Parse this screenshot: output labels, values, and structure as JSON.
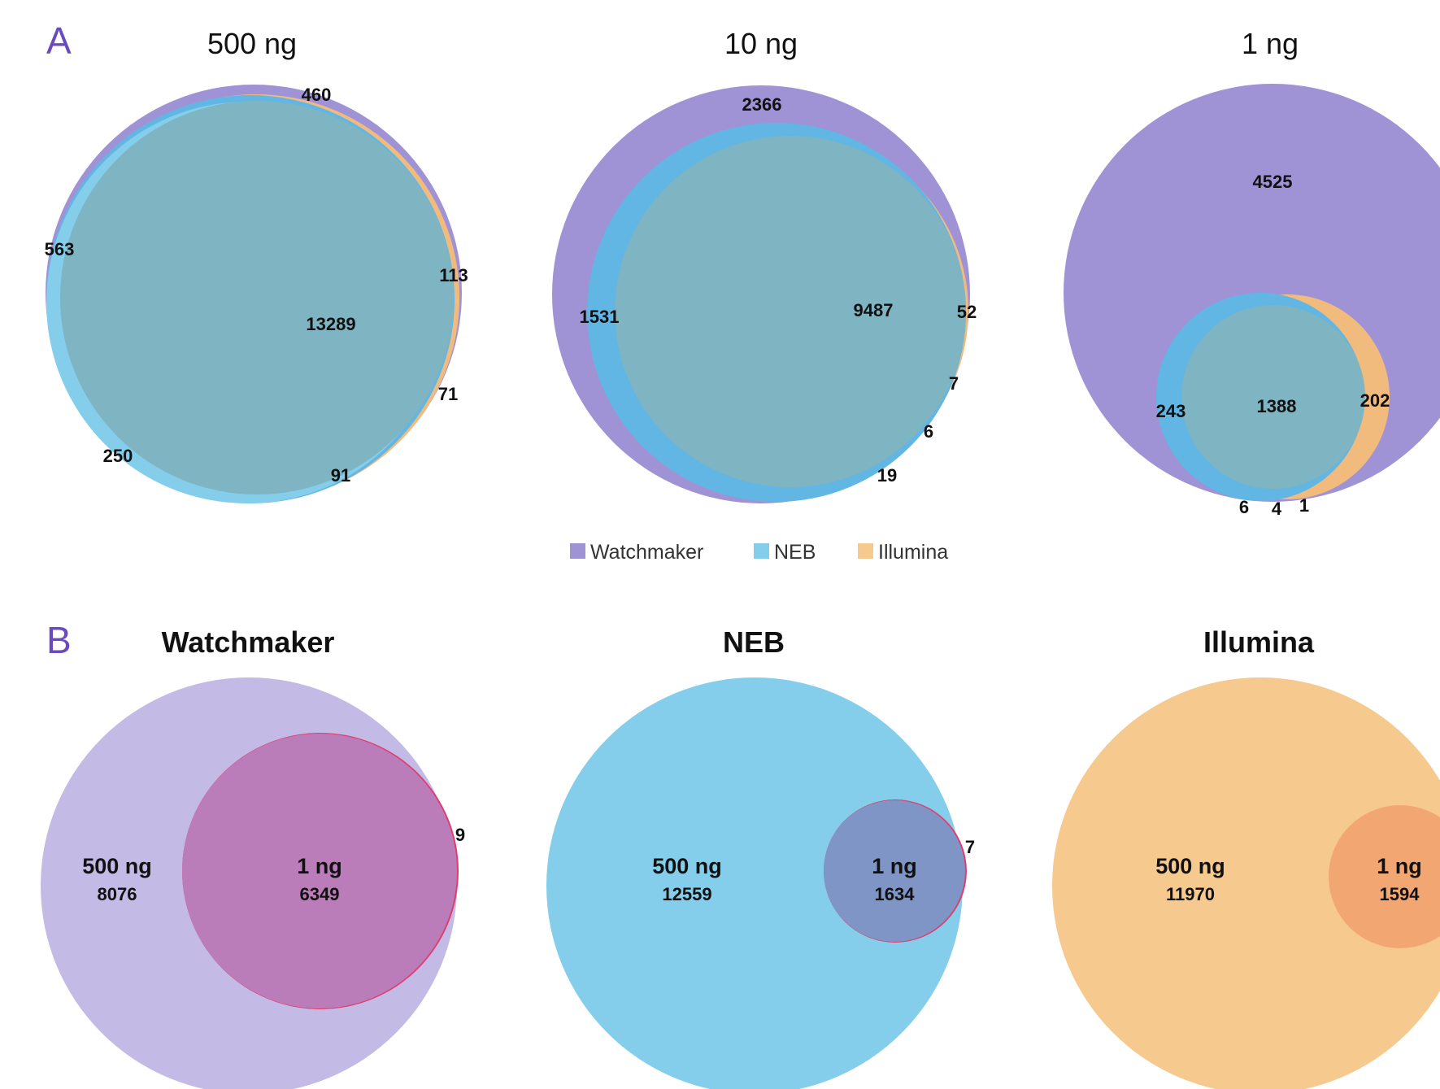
{
  "colors": {
    "watchmaker": "#9f93d6",
    "neb": "#62b6e3",
    "illumina": "#f1bb7e",
    "overlap": "#7fb4c2",
    "panel_letter": "#6a4bbd",
    "watchmaker_light": "#c3bae5",
    "watchmaker_1ng": "#bb7db9",
    "neb_light": "#84ceec",
    "neb_1ng": "#7f95c5",
    "illumina_light": "#f6c98f",
    "illumina_1ng": "#f2a773",
    "edge_sliver": "#e03c6e"
  },
  "panel_a": {
    "letter": "A",
    "legend": [
      "Watchmaker",
      "NEB",
      "Illumina"
    ]
  },
  "panel_b": {
    "letter": "B"
  },
  "chart_data": [
    {
      "type": "venn",
      "title": "500 ng",
      "sets": [
        "Watchmaker",
        "NEB",
        "Illumina"
      ],
      "regions": [
        {
          "sets": [
            "Watchmaker"
          ],
          "value": 460
        },
        {
          "sets": [
            "Watchmaker",
            "NEB"
          ],
          "value": 563
        },
        {
          "sets": [
            "Watchmaker",
            "Illumina"
          ],
          "value": 113
        },
        {
          "sets": [
            "Watchmaker",
            "NEB",
            "Illumina"
          ],
          "value": 13289
        },
        {
          "sets": [
            "Illumina"
          ],
          "value": 71
        },
        {
          "sets": [
            "NEB"
          ],
          "value": 250
        },
        {
          "sets": [
            "NEB",
            "Illumina"
          ],
          "value": 91
        }
      ]
    },
    {
      "type": "venn",
      "title": "10 ng",
      "sets": [
        "Watchmaker",
        "NEB",
        "Illumina"
      ],
      "regions": [
        {
          "sets": [
            "Watchmaker"
          ],
          "value": 2366
        },
        {
          "sets": [
            "Watchmaker",
            "NEB"
          ],
          "value": 1531
        },
        {
          "sets": [
            "Watchmaker",
            "NEB",
            "Illumina"
          ],
          "value": 9487
        },
        {
          "sets": [
            "Watchmaker",
            "Illumina"
          ],
          "value": 52
        },
        {
          "sets": [
            "Illumina"
          ],
          "value": 7
        },
        {
          "sets": [
            "NEB"
          ],
          "value": 6
        },
        {
          "sets": [
            "NEB",
            "Illumina"
          ],
          "value": 19
        }
      ]
    },
    {
      "type": "venn",
      "title": "1 ng",
      "sets": [
        "Watchmaker",
        "NEB",
        "Illumina"
      ],
      "regions": [
        {
          "sets": [
            "Watchmaker"
          ],
          "value": 4525
        },
        {
          "sets": [
            "Watchmaker",
            "NEB"
          ],
          "value": 243
        },
        {
          "sets": [
            "Watchmaker",
            "NEB",
            "Illumina"
          ],
          "value": 1388
        },
        {
          "sets": [
            "Watchmaker",
            "Illumina"
          ],
          "value": 202
        },
        {
          "sets": [
            "NEB"
          ],
          "value": 6
        },
        {
          "sets": [
            "NEB",
            "Illumina"
          ],
          "value": 4
        },
        {
          "sets": [
            "Illumina"
          ],
          "value": 1
        }
      ]
    },
    {
      "type": "venn",
      "title": "Watchmaker",
      "sets": [
        "500 ng",
        "1 ng"
      ],
      "regions": [
        {
          "sets": [
            "500 ng"
          ],
          "value": 8076
        },
        {
          "sets": [
            "500 ng",
            "1 ng"
          ],
          "value": 6349
        },
        {
          "sets": [
            "1 ng"
          ],
          "value": 9
        }
      ]
    },
    {
      "type": "venn",
      "title": "NEB",
      "sets": [
        "500 ng",
        "1 ng"
      ],
      "regions": [
        {
          "sets": [
            "500 ng"
          ],
          "value": 12559
        },
        {
          "sets": [
            "500 ng",
            "1 ng"
          ],
          "value": 1634
        },
        {
          "sets": [
            "1 ng"
          ],
          "value": 7
        }
      ]
    },
    {
      "type": "venn",
      "title": "Illumina",
      "sets": [
        "500 ng",
        "1 ng"
      ],
      "regions": [
        {
          "sets": [
            "500 ng"
          ],
          "value": 11970
        },
        {
          "sets": [
            "500 ng",
            "1 ng"
          ],
          "value": 1594
        }
      ]
    }
  ]
}
